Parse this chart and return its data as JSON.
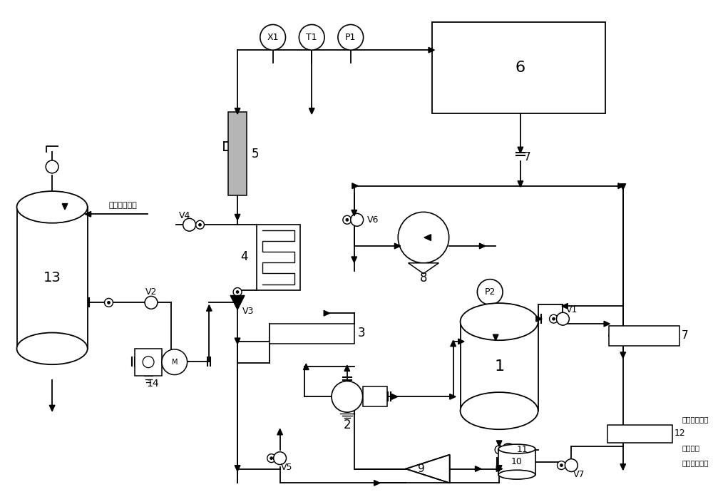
{
  "bg": "#ffffff",
  "lc": "#000000",
  "lw": 1.3,
  "fig_w": 10.0,
  "fig_h": 6.9,
  "dpi": 100,
  "gray5": "#aaaaaa",
  "labels": {
    "1": "1",
    "2": "2",
    "3": "3",
    "4": "4",
    "5": "5",
    "6": "6",
    "7": "7",
    "8": "8",
    "9": "9",
    "10": "10",
    "11": "11",
    "12": "12",
    "13": "13",
    "14": "14"
  },
  "cn_labels": {
    "chushui": "除盐水补给管",
    "lengjin_in": "冷凝水进口管",
    "lengjin_out": "冷凝水出口管",
    "paishui": "排渗管道"
  }
}
